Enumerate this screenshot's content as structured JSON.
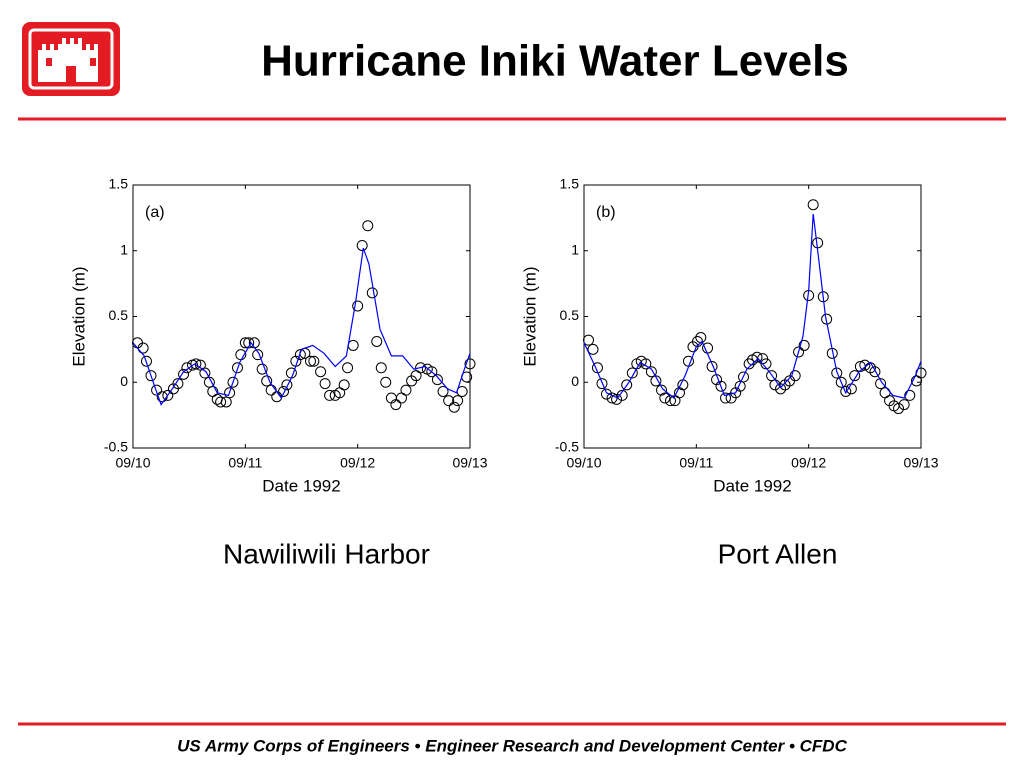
{
  "slide_title": "Hurricane Iniki Water Levels",
  "footer": "US Army Corps of Engineers • Engineer Research and Development Center • CFDC",
  "chart_data": [
    {
      "type": "line",
      "annotation": "(a)",
      "caption": "Nawiliwili Harbor",
      "xlabel": "Date 1992",
      "ylabel": "Elevation (m)",
      "xlim": [
        0,
        3
      ],
      "xticks": [
        {
          "value": 0,
          "label": "09/10"
        },
        {
          "value": 1,
          "label": "09/11"
        },
        {
          "value": 2,
          "label": "09/12"
        },
        {
          "value": 3,
          "label": "09/13"
        }
      ],
      "ylim": [
        -0.5,
        1.5
      ],
      "yticks": [
        1.5,
        1,
        0.5,
        0,
        -0.5
      ],
      "series": [
        {
          "type": "scatter",
          "color": "#000000",
          "x": [
            0.04,
            0.09,
            0.12,
            0.16,
            0.21,
            0.26,
            0.31,
            0.36,
            0.4,
            0.45,
            0.48,
            0.53,
            0.56,
            0.6,
            0.64,
            0.68,
            0.71,
            0.75,
            0.78,
            0.83,
            0.86,
            0.89,
            0.93,
            0.96,
            1.0,
            1.03,
            1.08,
            1.11,
            1.15,
            1.19,
            1.23,
            1.28,
            1.34,
            1.37,
            1.41,
            1.45,
            1.49,
            1.53,
            1.58,
            1.61,
            1.67,
            1.71,
            1.75,
            1.8,
            1.84,
            1.88,
            1.91,
            1.96,
            2.0,
            2.04,
            2.09,
            2.13,
            2.17,
            2.21,
            2.25,
            2.3,
            2.34,
            2.39,
            2.43,
            2.48,
            2.52,
            2.56,
            2.62,
            2.66,
            2.71,
            2.76,
            2.81,
            2.86,
            2.89,
            2.93,
            2.97,
            3.0
          ],
          "values": [
            0.3,
            0.26,
            0.16,
            0.05,
            -0.06,
            -0.11,
            -0.1,
            -0.05,
            -0.01,
            0.06,
            0.11,
            0.13,
            0.14,
            0.13,
            0.07,
            0,
            -0.07,
            -0.13,
            -0.15,
            -0.15,
            -0.08,
            0,
            0.11,
            0.21,
            0.3,
            0.3,
            0.3,
            0.21,
            0.1,
            0.01,
            -0.06,
            -0.11,
            -0.07,
            -0.02,
            0.07,
            0.16,
            0.21,
            0.22,
            0.16,
            0.16,
            0.08,
            -0.01,
            -0.1,
            -0.1,
            -0.08,
            -0.02,
            0.11,
            0.28,
            0.58,
            1.04,
            1.19,
            0.68,
            0.31,
            0.11,
            0,
            -0.12,
            -0.17,
            -0.12,
            -0.06,
            0.01,
            0.05,
            0.11,
            0.1,
            0.08,
            0.02,
            -0.07,
            -0.14,
            -0.19,
            -0.14,
            -0.07,
            0.04,
            0.14
          ]
        },
        {
          "type": "line",
          "color": "#0000ff",
          "x": [
            0,
            0.1,
            0.2,
            0.25,
            0.35,
            0.45,
            0.55,
            0.65,
            0.75,
            0.85,
            0.95,
            1.05,
            1.12,
            1.22,
            1.32,
            1.42,
            1.5,
            1.6,
            1.7,
            1.8,
            1.9,
            1.98,
            2.05,
            2.1,
            2.2,
            2.3,
            2.4,
            2.5,
            2.6,
            2.7,
            2.8,
            2.88,
            2.95,
            3.0
          ],
          "values": [
            0.3,
            0.2,
            -0.05,
            -0.17,
            -0.05,
            0.08,
            0.14,
            0.08,
            -0.08,
            -0.1,
            0.15,
            0.3,
            0.22,
            0.0,
            -0.12,
            0.05,
            0.25,
            0.28,
            0.22,
            0.12,
            0.2,
            0.6,
            1.02,
            0.9,
            0.4,
            0.2,
            0.2,
            0.1,
            0.12,
            0.05,
            -0.05,
            -0.08,
            0.1,
            0.22
          ]
        }
      ]
    },
    {
      "type": "line",
      "annotation": "(b)",
      "caption": "Port Allen",
      "xlabel": "Date 1992",
      "ylabel": "Elevation (m)",
      "xlim": [
        0,
        3
      ],
      "xticks": [
        {
          "value": 0,
          "label": "09/10"
        },
        {
          "value": 1,
          "label": "09/11"
        },
        {
          "value": 2,
          "label": "09/12"
        },
        {
          "value": 3,
          "label": "09/13"
        }
      ],
      "ylim": [
        -0.5,
        1.5
      ],
      "yticks": [
        1.5,
        1,
        0.5,
        0,
        -0.5
      ],
      "series": [
        {
          "type": "scatter",
          "color": "#000000",
          "x": [
            0.04,
            0.08,
            0.12,
            0.16,
            0.2,
            0.25,
            0.29,
            0.34,
            0.38,
            0.43,
            0.47,
            0.51,
            0.55,
            0.6,
            0.64,
            0.69,
            0.72,
            0.77,
            0.81,
            0.85,
            0.88,
            0.93,
            0.97,
            1.01,
            1.04,
            1.1,
            1.14,
            1.18,
            1.22,
            1.26,
            1.31,
            1.35,
            1.39,
            1.42,
            1.47,
            1.5,
            1.54,
            1.59,
            1.62,
            1.67,
            1.7,
            1.75,
            1.79,
            1.83,
            1.88,
            1.91,
            1.96,
            2.0,
            2.04,
            2.08,
            2.13,
            2.16,
            2.21,
            2.25,
            2.29,
            2.33,
            2.38,
            2.41,
            2.46,
            2.5,
            2.55,
            2.59,
            2.64,
            2.68,
            2.72,
            2.76,
            2.8,
            2.85,
            2.9,
            2.96,
            3.0
          ],
          "values": [
            0.32,
            0.25,
            0.11,
            -0.01,
            -0.09,
            -0.12,
            -0.13,
            -0.1,
            -0.02,
            0.07,
            0.14,
            0.16,
            0.14,
            0.08,
            0.01,
            -0.06,
            -0.12,
            -0.14,
            -0.14,
            -0.08,
            -0.02,
            0.16,
            0.27,
            0.31,
            0.34,
            0.26,
            0.12,
            0.02,
            -0.03,
            -0.12,
            -0.12,
            -0.08,
            -0.03,
            0.04,
            0.14,
            0.17,
            0.19,
            0.18,
            0.14,
            0.05,
            -0.02,
            -0.05,
            -0.02,
            0.01,
            0.05,
            0.23,
            0.28,
            0.66,
            1.35,
            1.06,
            0.65,
            0.48,
            0.22,
            0.07,
            0,
            -0.07,
            -0.05,
            0.05,
            0.12,
            0.13,
            0.11,
            0.08,
            -0.01,
            -0.08,
            -0.14,
            -0.18,
            -0.2,
            -0.17,
            -0.1,
            0.01,
            0.07
          ]
        },
        {
          "type": "line",
          "color": "#0000ff",
          "x": [
            0,
            0.1,
            0.2,
            0.3,
            0.4,
            0.5,
            0.6,
            0.7,
            0.8,
            0.9,
            1.0,
            1.05,
            1.15,
            1.25,
            1.35,
            1.45,
            1.55,
            1.65,
            1.75,
            1.85,
            1.95,
            2.0,
            2.04,
            2.08,
            2.15,
            2.25,
            2.33,
            2.45,
            2.55,
            2.65,
            2.75,
            2.85,
            2.95,
            3.0
          ],
          "values": [
            0.3,
            0.12,
            -0.08,
            -0.12,
            0.0,
            0.15,
            0.1,
            -0.05,
            -0.12,
            0.05,
            0.27,
            0.31,
            0.12,
            -0.1,
            -0.08,
            0.1,
            0.18,
            0.08,
            -0.04,
            0.05,
            0.35,
            0.7,
            1.28,
            1.0,
            0.5,
            0.08,
            -0.08,
            0.08,
            0.15,
            0.0,
            -0.1,
            -0.12,
            0.05,
            0.16
          ]
        }
      ]
    }
  ]
}
